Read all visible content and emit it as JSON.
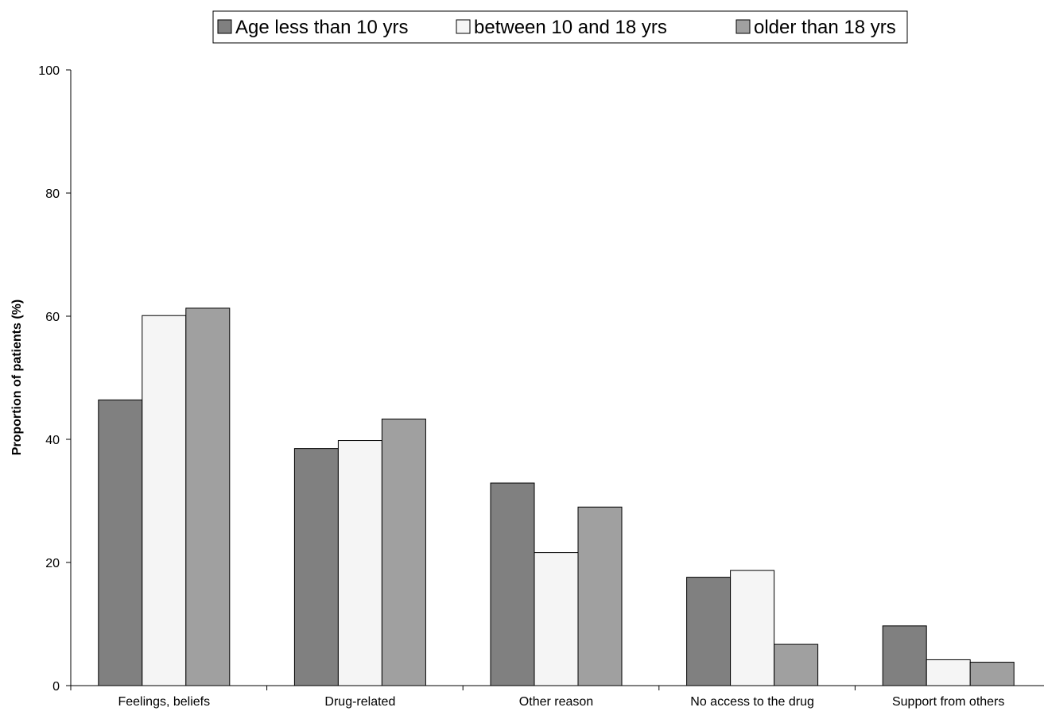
{
  "chart_data": {
    "type": "bar",
    "title": "",
    "xlabel": "",
    "ylabel": "Proportion of patients (%)",
    "ylim": [
      0,
      100
    ],
    "yticks": [
      0,
      20,
      40,
      60,
      80,
      100
    ],
    "grid": false,
    "legend_position": "top-center",
    "categories": [
      "Feelings, beliefs",
      "Drug-related",
      "Other reason",
      "No access to the drug",
      "Support from others"
    ],
    "series": [
      {
        "name": "Age less than 10 yrs",
        "color": "#808080",
        "values": [
          46.4,
          38.5,
          32.9,
          17.6,
          9.7
        ]
      },
      {
        "name": "between 10 and 18 yrs",
        "color": "#f5f5f5",
        "values": [
          60.1,
          39.8,
          21.6,
          18.7,
          4.2
        ]
      },
      {
        "name": "older than 18 yrs",
        "color": "#a0a0a0",
        "values": [
          61.3,
          43.3,
          29.0,
          6.7,
          3.8
        ]
      }
    ]
  }
}
